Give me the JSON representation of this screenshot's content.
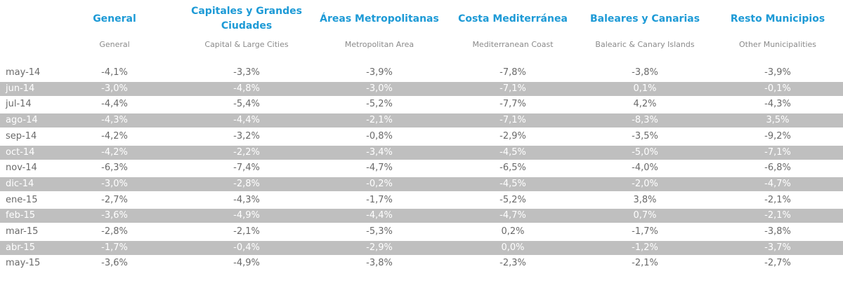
{
  "table": {
    "columns": [
      {
        "title": "General",
        "subtitle": "General"
      },
      {
        "title": "Capitales y Grandes Ciudades",
        "subtitle": "Capital & Large Cities"
      },
      {
        "title": "Áreas Metropolitanas",
        "subtitle": "Metropolitan Area"
      },
      {
        "title": "Costa Mediterránea",
        "subtitle": "Mediterranean Coast"
      },
      {
        "title": "Baleares y Canarias",
        "subtitle": "Balearic & Canary Islands"
      },
      {
        "title": "Resto Municipios",
        "subtitle": "Other Municipalities"
      }
    ],
    "rows": [
      [
        "may-14",
        "-4,1%",
        "-3,3%",
        "-3,9%",
        "-7,8%",
        "-3,8%",
        "-3,9%"
      ],
      [
        "jun-14",
        "-3,0%",
        "-4,8%",
        "-3,0%",
        "-7,1%",
        "0,1%",
        "-0,1%"
      ],
      [
        "jul-14",
        "-4,4%",
        "-5,4%",
        "-5,2%",
        "-7,7%",
        "4,2%",
        "-4,3%"
      ],
      [
        "ago-14",
        "-4,3%",
        "-4,4%",
        "-2,1%",
        "-7,1%",
        "-8,3%",
        "3,5%"
      ],
      [
        "sep-14",
        "-4,2%",
        "-3,2%",
        "-0,8%",
        "-2,9%",
        "-3,5%",
        "-9,2%"
      ],
      [
        "oct-14",
        "-4,2%",
        "-2,2%",
        "-3,4%",
        "-4,5%",
        "-5,0%",
        "-7,1%"
      ],
      [
        "nov-14",
        "-6,3%",
        "-7,4%",
        "-4,7%",
        "-6,5%",
        "-4,0%",
        "-6,8%"
      ],
      [
        "dic-14",
        "-3,0%",
        "-2,8%",
        "-0,2%",
        "-4,5%",
        "-2,0%",
        "-4,7%"
      ],
      [
        "ene-15",
        "-2,7%",
        "-4,3%",
        "-1,7%",
        "-5,2%",
        "3,8%",
        "-2,1%"
      ],
      [
        "feb-15",
        "-3,6%",
        "-4,9%",
        "-4,4%",
        "-4,7%",
        "0,7%",
        "-2,1%"
      ],
      [
        "mar-15",
        "-2,8%",
        "-2,1%",
        "-5,3%",
        "0,2%",
        "-1,7%",
        "-3,8%"
      ],
      [
        "abr-15",
        "-1,7%",
        "-0,4%",
        "-2,9%",
        "0,0%",
        "-1,2%",
        "-3,7%"
      ],
      [
        "may-15",
        "-3,6%",
        "-4,9%",
        "-3,8%",
        "-2,3%",
        "-2,1%",
        "-2,7%"
      ]
    ]
  }
}
